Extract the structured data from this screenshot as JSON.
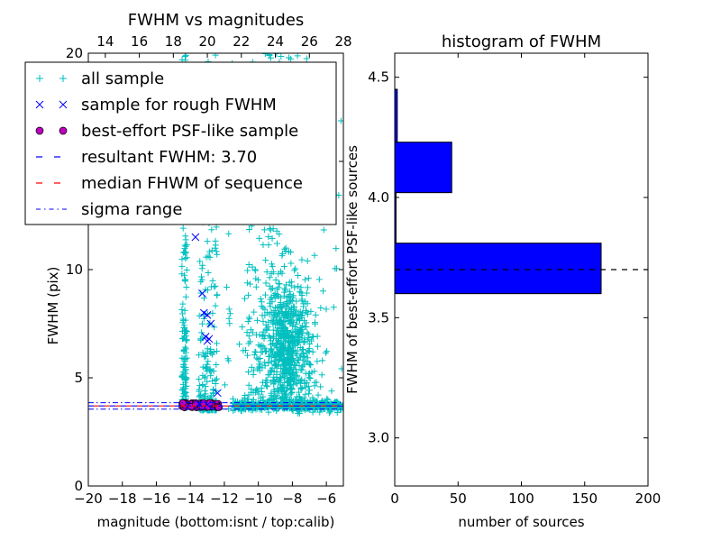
{
  "chart_data": [
    {
      "type": "scatter",
      "title": "FWHM vs magnitudes",
      "xlabel": "magnitude (bottom:isnt / top:calib)",
      "ylabel": "FWHM (pix)",
      "xlim": [
        -20,
        -5
      ],
      "ylim": [
        0,
        20
      ],
      "x_ticks": [
        -20,
        -18,
        -16,
        -14,
        -12,
        -10,
        -8,
        -6
      ],
      "x_tick_labels": [
        "−20",
        "−18",
        "−16",
        "−14",
        "−12",
        "−10",
        "−8",
        "−6"
      ],
      "top_x_ticks": [
        14,
        16,
        18,
        20,
        22,
        24,
        26,
        28
      ],
      "top_x_tick_labels": [
        "14",
        "16",
        "18",
        "20",
        "22",
        "24",
        "26",
        "28"
      ],
      "top_xlim": [
        13,
        28
      ],
      "y_ticks": [
        0,
        5,
        10,
        15,
        20
      ],
      "y_tick_labels": [
        "0",
        "5",
        "10",
        "15",
        "20"
      ],
      "legend": {
        "placement": "upper-left",
        "entries": [
          {
            "label": "all sample",
            "marker": "+",
            "color": "#00bfbf"
          },
          {
            "label": "sample for rough FWHM",
            "marker": "x",
            "color": "#0000ff"
          },
          {
            "label": "best-effort PSF-like sample",
            "marker": "o",
            "color": "#bf00bf"
          },
          {
            "label": "resultant FWHM: 3.70",
            "marker": "dashed",
            "color": "#0000ff"
          },
          {
            "label": "median FHWM of sequence",
            "marker": "dashed",
            "color": "#ff0000"
          },
          {
            "label": "sigma range",
            "marker": "dashdot",
            "color": "#0000ff"
          }
        ]
      },
      "lines": {
        "resultant_fwhm": 3.7,
        "median_fwhm": 3.7,
        "sigma_range": [
          3.55,
          3.85
        ]
      },
      "series": [
        {
          "name": "sample for rough FWHM",
          "points": [
            [
              -13.7,
              11.5
            ],
            [
              -13.3,
              8.9
            ],
            [
              -13.2,
              8.0
            ],
            [
              -13.0,
              7.9
            ],
            [
              -12.8,
              7.5
            ],
            [
              -13.1,
              6.9
            ],
            [
              -12.9,
              6.8
            ],
            [
              -13.0,
              6.7
            ],
            [
              -12.4,
              4.3
            ],
            [
              -13.5,
              3.8
            ],
            [
              -13.0,
              3.75
            ]
          ]
        },
        {
          "name": "best-effort PSF-like sample",
          "x_range": [
            -14.5,
            -12.3
          ],
          "y_range": [
            3.62,
            3.85
          ]
        },
        {
          "name": "all sample",
          "groups": [
            {
              "x_range": [
                -14.5,
                -14.2
              ],
              "y_range": [
                3.7,
                20
              ]
            },
            {
              "x_range": [
                -13.5,
                -12.4
              ],
              "y_range": [
                3.5,
                20
              ]
            },
            {
              "x_range": [
                -11.5,
                -5
              ],
              "y_range": [
                3.4,
                3.9
              ]
            },
            {
              "x_range": [
                -11,
                -8
              ],
              "y_range": [
                4,
                20
              ]
            },
            {
              "x_range": [
                -9.5,
                -6.5
              ],
              "y_range": [
                3.5,
                9
              ]
            }
          ]
        }
      ]
    },
    {
      "type": "bar",
      "orientation": "horizontal",
      "title": "histogram of FWHM",
      "xlabel": "number of sources",
      "ylabel": "FWHM of best-effort PSF-like sources",
      "xlim": [
        0,
        200
      ],
      "ylim": [
        2.8,
        4.6
      ],
      "x_ticks": [
        0,
        50,
        100,
        150,
        200
      ],
      "x_tick_labels": [
        "0",
        "50",
        "100",
        "150",
        "200"
      ],
      "y_ticks": [
        3.0,
        3.5,
        4.0,
        4.5
      ],
      "y_tick_labels": [
        "3.0",
        "3.5",
        "4.0",
        "4.5"
      ],
      "bins": [
        {
          "from": 3.6,
          "to": 3.81,
          "count": 163
        },
        {
          "from": 3.81,
          "to": 4.02,
          "count": 1
        },
        {
          "from": 4.02,
          "to": 4.23,
          "count": 45
        },
        {
          "from": 4.23,
          "to": 4.45,
          "count": 2
        }
      ],
      "bar_color": "#0000ff",
      "reference_line": 3.7
    }
  ]
}
